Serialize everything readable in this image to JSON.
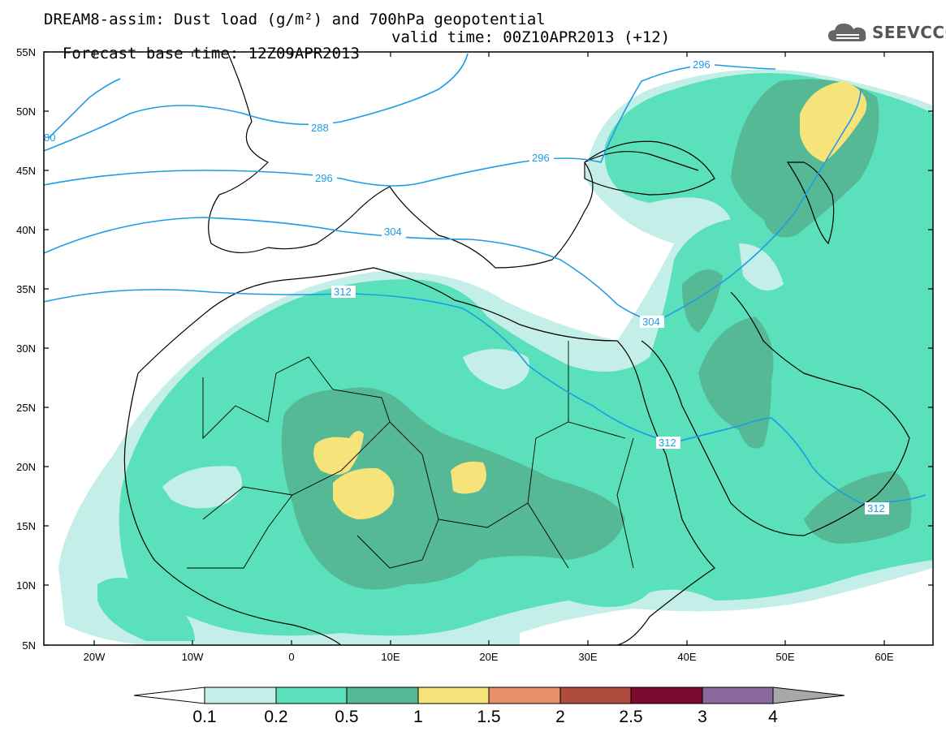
{
  "title": {
    "line1": "DREAM8-assim: Dust load (g/m²) and 700hPa geopotential",
    "base_time": "Forecast base time: 12Z09APR2013",
    "valid_time": "valid time: 00Z10APR2013 (+12)"
  },
  "logo": {
    "text": "SEEVCCC",
    "icon": "cloud-logo-icon"
  },
  "map": {
    "lat_labels": [
      "55N",
      "50N",
      "45N",
      "40N",
      "35N",
      "30N",
      "25N",
      "20N",
      "15N",
      "10N",
      "5N"
    ],
    "lon_labels": [
      "20W",
      "10W",
      "0",
      "10E",
      "20E",
      "30E",
      "40E",
      "50E",
      "60E"
    ],
    "contour_labels": [
      "80",
      "288",
      "296",
      "296",
      "296",
      "304",
      "312",
      "304",
      "312",
      "312"
    ]
  },
  "legend": {
    "levels": [
      "0.1",
      "0.2",
      "0.5",
      "1",
      "1.5",
      "2",
      "2.5",
      "3",
      "4"
    ],
    "colors": [
      "#c4efe8",
      "#5ae0bb",
      "#55b996",
      "#f6e37a",
      "#e8906a",
      "#b04c3f",
      "#7a0a2e",
      "#8a6a9e"
    ],
    "underflow_color": "#ffffff",
    "overflow_color": "#a8a8a8"
  },
  "colors": {
    "contour_line": "#1e9be6",
    "coastline": "#000000"
  }
}
